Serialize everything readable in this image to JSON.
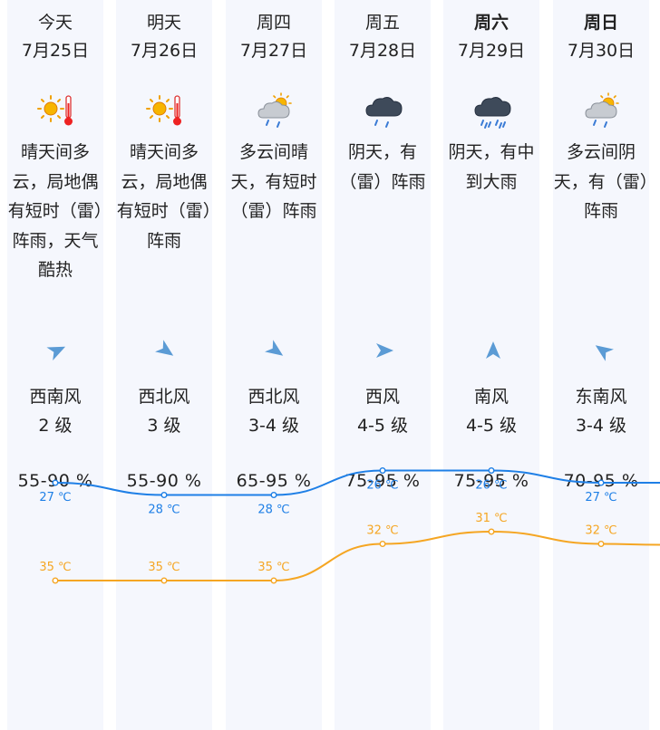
{
  "days": [
    {
      "day": "今天",
      "date": "7月25日",
      "icon": "sunny-hot-icon",
      "desc": "晴天间多云，局地偶有短时（雷）阵雨，天气酷热",
      "wind_dir": "西南风",
      "wind_level": "2 级",
      "wind_icon": "wind-southwest-icon",
      "humidity": "55-90 %",
      "high": "35 ℃",
      "low": "27 ℃",
      "bold": false
    },
    {
      "day": "明天",
      "date": "7月26日",
      "icon": "sunny-hot-icon",
      "desc": "晴天间多云，局地偶有短时（雷）阵雨",
      "wind_dir": "西北风",
      "wind_level": "3 级",
      "wind_icon": "wind-northwest-icon",
      "humidity": "55-90 %",
      "high": "35 ℃",
      "low": "28 ℃",
      "bold": false
    },
    {
      "day": "周四",
      "date": "7月27日",
      "icon": "partly-cloudy-rain-icon",
      "desc": "多云间晴天，有短时（雷）阵雨",
      "wind_dir": "西北风",
      "wind_level": "3-4 级",
      "wind_icon": "wind-northwest-icon",
      "humidity": "65-95 %",
      "high": "35 ℃",
      "low": "28 ℃",
      "bold": false
    },
    {
      "day": "周五",
      "date": "7月28日",
      "icon": "dark-cloud-rain-icon",
      "desc": "阴天，有（雷）阵雨",
      "wind_dir": "西风",
      "wind_level": "4-5 级",
      "wind_icon": "wind-west-icon",
      "humidity": "75-95 %",
      "high": "32 ℃",
      "low": "26 ℃",
      "bold": false
    },
    {
      "day": "周六",
      "date": "7月29日",
      "icon": "heavy-rain-icon",
      "desc": "阴天，有中到大雨",
      "wind_dir": "南风",
      "wind_level": "4-5 级",
      "wind_icon": "wind-south-icon",
      "humidity": "75-95 %",
      "high": "31 ℃",
      "low": "26 ℃",
      "bold": true
    },
    {
      "day": "周日",
      "date": "7月30日",
      "icon": "partly-cloudy-rain-icon",
      "desc": "多云间阴天，有（雷）阵雨",
      "wind_dir": "东南风",
      "wind_level": "3-4 级",
      "wind_icon": "wind-southeast-icon",
      "humidity": "70-95 %",
      "high": "32 ℃",
      "low": "27 ℃",
      "bold": true
    }
  ],
  "chart_data": {
    "type": "line",
    "categories": [
      "7月25日",
      "7月26日",
      "7月27日",
      "7月28日",
      "7月29日",
      "7月30日"
    ],
    "series": [
      {
        "values": [
          35,
          35,
          35,
          32,
          31,
          32
        ],
        "color": "#f5a623"
      },
      {
        "values": [
          27,
          28,
          28,
          26,
          26,
          27
        ],
        "color": "#1e7fe6"
      }
    ],
    "unit": "℃"
  },
  "colors": {
    "high_line": "#f5a623",
    "low_line": "#1e7fe6",
    "column_bg": "#f5f7fd",
    "wind_arrow": "#5b9bd5"
  }
}
